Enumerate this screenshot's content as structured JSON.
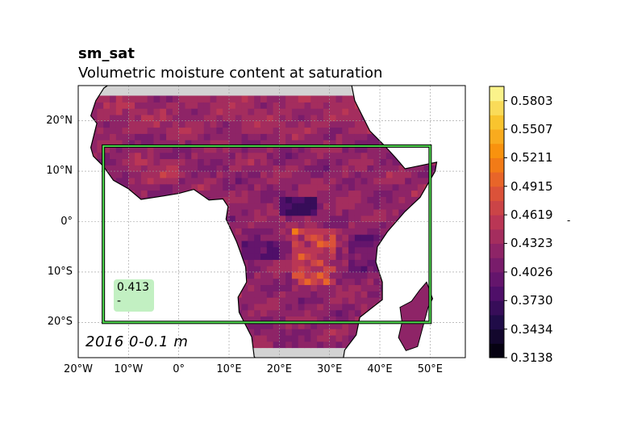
{
  "title": {
    "variable": "sm_sat",
    "description": "Volumetric moisture content at saturation"
  },
  "map": {
    "extent": {
      "lon_min": -20,
      "lon_max": 57,
      "lat_min": -27,
      "lat_max": 27
    },
    "data_extent": {
      "lon_min": -17.5,
      "lon_max": 55,
      "lat_min": -25,
      "lat_max": 25
    },
    "region_box": {
      "lon_min": -15,
      "lon_max": 50,
      "lat_min": -20,
      "lat_max": 15,
      "color": "#4cd94c"
    },
    "lat_ticks": [
      {
        "value": 20,
        "label": "20°N"
      },
      {
        "value": 10,
        "label": "10°N"
      },
      {
        "value": 0,
        "label": "0°"
      },
      {
        "value": -10,
        "label": "10°S"
      },
      {
        "value": -20,
        "label": "20°S"
      }
    ],
    "lon_ticks": [
      {
        "value": -20,
        "label": "20°W"
      },
      {
        "value": -10,
        "label": "10°W"
      },
      {
        "value": 0,
        "label": "0°"
      },
      {
        "value": 10,
        "label": "10°E"
      },
      {
        "value": 20,
        "label": "20°E"
      },
      {
        "value": 30,
        "label": "30°E"
      },
      {
        "value": 40,
        "label": "40°E"
      },
      {
        "value": 50,
        "label": "50°E"
      }
    ],
    "grid": true,
    "colormap": "inferno",
    "land_outside_color": "#d3d3d3"
  },
  "colorbar": {
    "min": 0.3138,
    "max": 0.5951,
    "levels": 19,
    "tick_labels": [
      "0.3138",
      "0.3434",
      "0.3730",
      "0.4026",
      "0.4323",
      "0.4619",
      "0.4915",
      "0.5211",
      "0.5507",
      "0.5803"
    ],
    "unit": "-"
  },
  "annotation": {
    "year_depth": "2016   0-0.1 m",
    "mean_value": "0.413",
    "mean_unit": "-"
  }
}
